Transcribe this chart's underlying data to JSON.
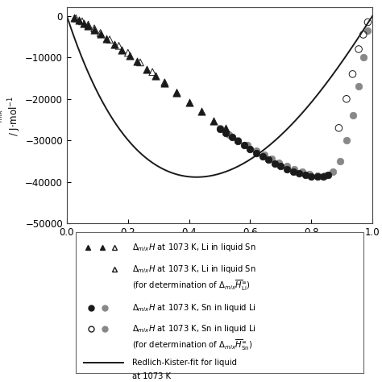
{
  "xlim": [
    0.0,
    1.0
  ],
  "ylim": [
    -50000,
    2000
  ],
  "yticks": [
    0,
    -10000,
    -20000,
    -30000,
    -40000,
    -50000
  ],
  "xticks": [
    0.0,
    0.2,
    0.4,
    0.6,
    0.8,
    1.0
  ],
  "redlich_kister_coeffs": [
    -152000,
    43000,
    -18000,
    12000
  ],
  "triangles_black_x": [
    0.025,
    0.04,
    0.055,
    0.07,
    0.09,
    0.11,
    0.13,
    0.155,
    0.18,
    0.205,
    0.23,
    0.26,
    0.29,
    0.32,
    0.36,
    0.4,
    0.44,
    0.48,
    0.52
  ],
  "triangles_black_y": [
    -500,
    -1000,
    -1700,
    -2400,
    -3300,
    -4400,
    -5500,
    -6800,
    -8200,
    -9600,
    -11000,
    -12800,
    -14500,
    -16200,
    -18500,
    -20800,
    -23000,
    -25200,
    -27000
  ],
  "triangles_open_x": [
    0.03,
    0.05,
    0.07,
    0.09,
    0.11,
    0.14,
    0.17,
    0.2,
    0.24,
    0.28,
    0.32,
    0.36
  ],
  "triangles_open_y": [
    -600,
    -1300,
    -2100,
    -3000,
    -4100,
    -5700,
    -7200,
    -8900,
    -11200,
    -13500,
    -16000,
    -18500
  ],
  "circles_black_x": [
    0.5,
    0.52,
    0.54,
    0.56,
    0.58,
    0.6,
    0.62,
    0.64,
    0.66,
    0.68,
    0.7,
    0.72,
    0.74,
    0.76,
    0.78,
    0.8,
    0.82,
    0.84,
    0.855
  ],
  "circles_black_y": [
    -27200,
    -28200,
    -29200,
    -30200,
    -31100,
    -32000,
    -33000,
    -33900,
    -34700,
    -35500,
    -36200,
    -36900,
    -37500,
    -37900,
    -38300,
    -38600,
    -38700,
    -38600,
    -38200
  ],
  "circles_gray_x": [
    0.5,
    0.53,
    0.56,
    0.59,
    0.62,
    0.645,
    0.67,
    0.695,
    0.72,
    0.745,
    0.77,
    0.795,
    0.82,
    0.845,
    0.87,
    0.895,
    0.915,
    0.935,
    0.955,
    0.97,
    0.985
  ],
  "circles_gray_y": [
    -27000,
    -28500,
    -30000,
    -31200,
    -32400,
    -33500,
    -34500,
    -35400,
    -36200,
    -37000,
    -37600,
    -38100,
    -38400,
    -38400,
    -37600,
    -35000,
    -30000,
    -24000,
    -17000,
    -10000,
    -3500
  ],
  "circles_open_x": [
    0.89,
    0.915,
    0.935,
    0.955,
    0.97,
    0.985
  ],
  "circles_open_y": [
    -27000,
    -20000,
    -14000,
    -8000,
    -4500,
    -1500
  ],
  "bg_color": "#ffffff",
  "triangle_color_black": "#1a1a1a",
  "triangle_color_open": "#1a1a1a",
  "circle_color_black": "#1a1a1a",
  "circle_color_gray": "#888888",
  "circle_color_open": "#1a1a1a",
  "line_color": "#1a1a1a",
  "legend_fs": 7.2
}
